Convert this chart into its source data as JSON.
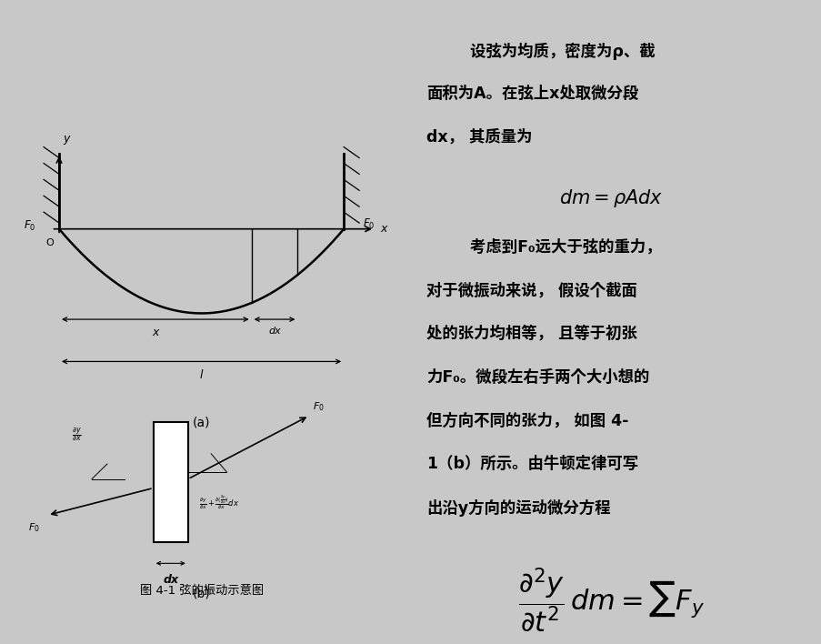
{
  "bg_color": "#c8c8c8",
  "left_bg": "#d0d0d0",
  "right_bg": "#ffffff",
  "fig_w": 9.2,
  "fig_h": 6.9,
  "fig_caption": "图 4-1 弦的振动示意图",
  "right_para1_lines": [
    "        设弦为均质，密度为ρ、截",
    "面积为A。在弦上x处取微分段",
    "dx， 其质量为"
  ],
  "formula1": "dm = \\rho A dx",
  "right_para2_lines": [
    "        考虑到F₀远大于弦的重力，",
    "对于微振动来说， 假设个截面",
    "处的张力均相等， 且等于初张",
    "力F₀。微段左右手两个大小想的",
    "但方向不同的张力， 如图 4-",
    "1（b）所示。由牛顿定律可写",
    "出沿y方向的运动微分方程"
  ],
  "formula2": "\\dfrac{\\partial^2 y}{\\partial t^2}\\,dm = \\sum F_y"
}
